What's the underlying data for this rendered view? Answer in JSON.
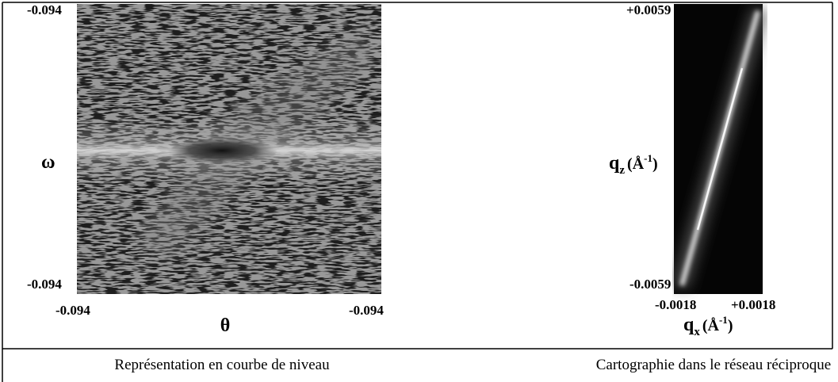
{
  "left_panel": {
    "y_top_label": "-0.094",
    "y_axis_label": "ω",
    "y_bottom_label": "-0.094",
    "x_left_label": "-0.094",
    "x_right_label": "-0.094",
    "x_axis_label": "θ",
    "caption": "Représentation en courbe de niveau"
  },
  "right_panel": {
    "y_top_label": "+0.0059",
    "y_bottom_label": "-0.0059",
    "y_axis_label": {
      "symbol": "q",
      "subscript": "z",
      "unit_open": "(Å",
      "exponent": "-1",
      "unit_close": ")"
    },
    "x_left_label": "-0.0018",
    "x_right_label": "+0.0018",
    "x_axis_label": {
      "symbol": "q",
      "subscript": "x",
      "unit_open": "(Å",
      "exponent": "-1",
      "unit_close": ")"
    },
    "caption": "Cartographie dans le réseau réciproque"
  }
}
